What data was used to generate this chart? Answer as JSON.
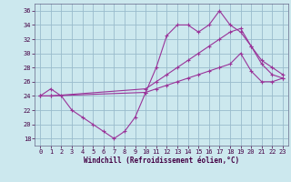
{
  "xlabel": "Windchill (Refroidissement éolien,°C)",
  "bg_color": "#cce8ee",
  "grid_color": "#99bbcc",
  "line_color": "#993399",
  "ylim": [
    17,
    37
  ],
  "xlim": [
    -0.5,
    23.5
  ],
  "yticks": [
    18,
    20,
    22,
    24,
    26,
    28,
    30,
    32,
    34,
    36
  ],
  "xticks": [
    0,
    1,
    2,
    3,
    4,
    5,
    6,
    7,
    8,
    9,
    10,
    11,
    12,
    13,
    14,
    15,
    16,
    17,
    18,
    19,
    20,
    21,
    22,
    23
  ],
  "series1_x": [
    0,
    1,
    2,
    3,
    4,
    5,
    6,
    7,
    8,
    9,
    10,
    11,
    12,
    13,
    14,
    15,
    16,
    17,
    18,
    19,
    20,
    21,
    22,
    23
  ],
  "series1_y": [
    24,
    25,
    24,
    22,
    21,
    20,
    19,
    18,
    19,
    21,
    24.5,
    28,
    32.5,
    34,
    34,
    33,
    34,
    36,
    34,
    33,
    31,
    28.5,
    27,
    26.5
  ],
  "series2_x": [
    0,
    1,
    10,
    11,
    12,
    13,
    14,
    15,
    16,
    17,
    18,
    19,
    20,
    21,
    22,
    23
  ],
  "series2_y": [
    24,
    24,
    25,
    26,
    27,
    28,
    29,
    30,
    31,
    32,
    33,
    33.5,
    31,
    29,
    28,
    27
  ],
  "series3_x": [
    0,
    1,
    10,
    11,
    12,
    13,
    14,
    15,
    16,
    17,
    18,
    19,
    20,
    21,
    22,
    23
  ],
  "series3_y": [
    24,
    24,
    24.5,
    25,
    25.5,
    26,
    26.5,
    27,
    27.5,
    28,
    28.5,
    30,
    27.5,
    26,
    26,
    26.5
  ]
}
